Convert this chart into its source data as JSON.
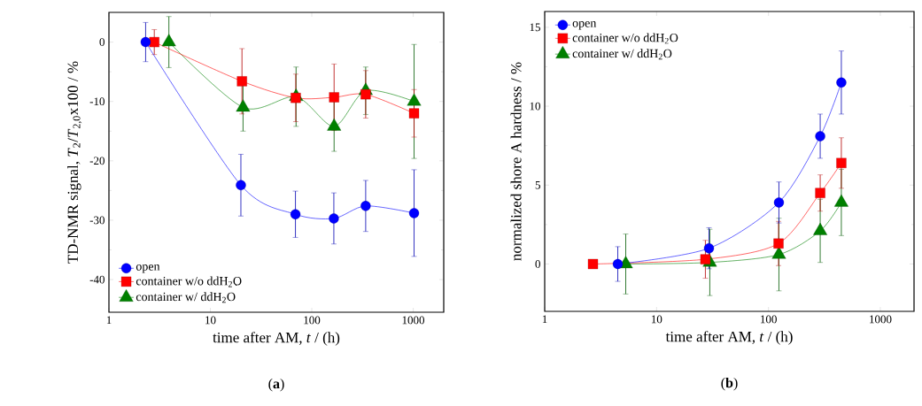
{
  "chart_data": [
    {
      "type": "line",
      "title": "(**a**)",
      "xlabel": "time after AM, *t* / (h)",
      "ylabel": "TD-NMR signal, *T*$_{2}$/*T*$_{2,0}$x100 / %",
      "log": "x",
      "xlim": [
        1,
        2000
      ],
      "ylim": [
        -45.5,
        5
      ],
      "xticks": [
        1,
        10,
        100,
        1000
      ],
      "yticks": [
        0,
        -10,
        -20,
        -30,
        -40
      ],
      "legend": "bottom left",
      "line_style": "solid",
      "series": [
        {
          "name": "open",
          "color": "#0000ff",
          "marker": "circle",
          "x": [
            2.3,
            20,
            69,
            165,
            340,
            1020
          ],
          "values": [
            0,
            -24.1,
            -29.0,
            -29.7,
            -27.6,
            -28.8
          ],
          "errors": [
            3.3,
            5.2,
            3.9,
            4.3,
            4.3,
            7.3
          ]
        },
        {
          "name": "container w/o ddH$_{2}$O",
          "color": "#ff0000",
          "marker": "square",
          "x": [
            2.8,
            20.5,
            69.5,
            166,
            340,
            1020
          ],
          "values": [
            0,
            -6.6,
            -9.4,
            -9.3,
            -8.8,
            -12.0
          ],
          "errors": [
            2.1,
            5.5,
            4,
            5.6,
            4,
            4
          ]
        },
        {
          "name": "container w/ ddH$_{2}$O",
          "color": "#008000",
          "marker": "triangle",
          "x": [
            3.9,
            21,
            70,
            166,
            340,
            1020
          ],
          "values": [
            0,
            -11.0,
            -9.2,
            -14.2,
            -8.2,
            -10.0
          ],
          "errors": [
            4.3,
            4,
            5,
            4.2,
            4,
            9.6
          ]
        }
      ]
    },
    {
      "type": "line",
      "title": "(**b**)",
      "xlabel": "time after AM, *t* / (h)",
      "ylabel": "normalized shore A hardness / %",
      "log": "x",
      "xlim": [
        1,
        2000
      ],
      "ylim": [
        -3,
        16
      ],
      "xticks": [
        1,
        10,
        100,
        1000
      ],
      "yticks": [
        0,
        5,
        10,
        15
      ],
      "legend": "top left",
      "line_style": "solid",
      "series": [
        {
          "name": "open",
          "color": "#0000ff",
          "marker": "circle",
          "x": [
            4.5,
            29.4,
            124,
            290,
            448
          ],
          "values": [
            0,
            1.0,
            3.9,
            8.1,
            11.5
          ],
          "errors": [
            1.1,
            1.3,
            1.3,
            1.4,
            2
          ]
        },
        {
          "name": "container w/o ddH$_{2}$O",
          "color": "#ff0000",
          "marker": "square",
          "x": [
            2.7,
            27.3,
            123,
            290,
            448
          ],
          "values": [
            0,
            0.3,
            1.3,
            4.5,
            6.4
          ],
          "errors": [
            null,
            1.2,
            1.4,
            1.15,
            1.6
          ]
        },
        {
          "name": "container w/ ddH$_{2}$O",
          "color": "#008000",
          "marker": "triangle",
          "x": [
            5.3,
            29.9,
            124,
            290,
            448
          ],
          "values": [
            0,
            0.1,
            0.6,
            2.1,
            3.9
          ],
          "errors": [
            1.9,
            2.1,
            2.3,
            2.0,
            2.1
          ]
        }
      ]
    }
  ]
}
